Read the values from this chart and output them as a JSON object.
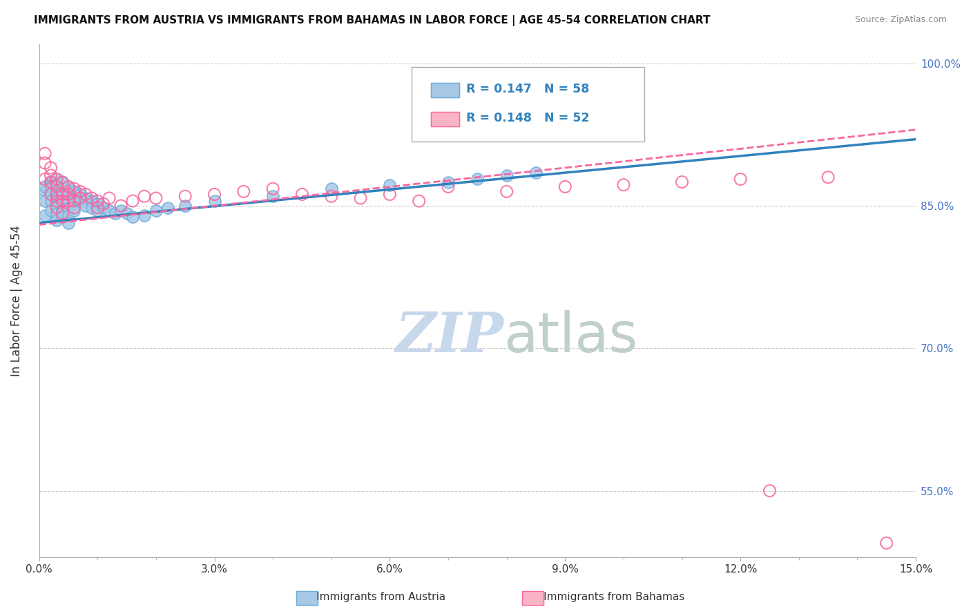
{
  "title": "IMMIGRANTS FROM AUSTRIA VS IMMIGRANTS FROM BAHAMAS IN LABOR FORCE | AGE 45-54 CORRELATION CHART",
  "source": "Source: ZipAtlas.com",
  "ylabel": "In Labor Force | Age 45-54",
  "xlim": [
    0.0,
    0.15
  ],
  "ylim": [
    0.48,
    1.02
  ],
  "xticks": [
    0.0,
    0.03,
    0.06,
    0.09,
    0.12,
    0.15
  ],
  "xticklabels": [
    "0.0%",
    "3.0%",
    "6.0%",
    "9.0%",
    "12.0%",
    "15.0%"
  ],
  "yticks": [
    0.55,
    0.7,
    0.85,
    1.0
  ],
  "yticklabels": [
    "55.0%",
    "70.0%",
    "85.0%",
    "100.0%"
  ],
  "austria_color": "#a8c8e8",
  "austria_edge_color": "#6baed6",
  "bahamas_color": "#fbb4c6",
  "bahamas_edge_color": "#f768a1",
  "trend_austria_color": "#3182bd",
  "trend_bahamas_color": "#f768a1",
  "austria_R": 0.147,
  "austria_N": 58,
  "bahamas_R": 0.148,
  "bahamas_N": 52,
  "austria_x": [
    0.001,
    0.001,
    0.001,
    0.001,
    0.002,
    0.002,
    0.002,
    0.002,
    0.002,
    0.003,
    0.003,
    0.003,
    0.003,
    0.003,
    0.003,
    0.003,
    0.004,
    0.004,
    0.004,
    0.004,
    0.004,
    0.004,
    0.005,
    0.005,
    0.005,
    0.005,
    0.005,
    0.005,
    0.006,
    0.006,
    0.006,
    0.006,
    0.007,
    0.007,
    0.008,
    0.008,
    0.009,
    0.009,
    0.01,
    0.01,
    0.011,
    0.012,
    0.013,
    0.014,
    0.015,
    0.016,
    0.018,
    0.02,
    0.022,
    0.025,
    0.03,
    0.04,
    0.05,
    0.06,
    0.07,
    0.075,
    0.08,
    0.085
  ],
  "austria_y": [
    0.865,
    0.87,
    0.855,
    0.84,
    0.875,
    0.87,
    0.862,
    0.855,
    0.845,
    0.878,
    0.872,
    0.865,
    0.858,
    0.85,
    0.842,
    0.835,
    0.875,
    0.868,
    0.862,
    0.855,
    0.845,
    0.838,
    0.87,
    0.862,
    0.855,
    0.848,
    0.84,
    0.832,
    0.865,
    0.858,
    0.852,
    0.845,
    0.862,
    0.855,
    0.858,
    0.85,
    0.855,
    0.848,
    0.852,
    0.845,
    0.848,
    0.845,
    0.842,
    0.845,
    0.842,
    0.838,
    0.84,
    0.845,
    0.848,
    0.85,
    0.855,
    0.86,
    0.868,
    0.872,
    0.875,
    0.878,
    0.882,
    0.885
  ],
  "bahamas_x": [
    0.001,
    0.001,
    0.001,
    0.002,
    0.002,
    0.002,
    0.002,
    0.003,
    0.003,
    0.003,
    0.003,
    0.003,
    0.004,
    0.004,
    0.004,
    0.004,
    0.005,
    0.005,
    0.005,
    0.006,
    0.006,
    0.006,
    0.007,
    0.007,
    0.008,
    0.009,
    0.01,
    0.01,
    0.011,
    0.012,
    0.014,
    0.016,
    0.018,
    0.02,
    0.025,
    0.03,
    0.035,
    0.04,
    0.045,
    0.05,
    0.055,
    0.06,
    0.065,
    0.07,
    0.08,
    0.09,
    0.1,
    0.11,
    0.12,
    0.125,
    0.135,
    0.145
  ],
  "bahamas_y": [
    0.878,
    0.905,
    0.895,
    0.882,
    0.875,
    0.89,
    0.862,
    0.878,
    0.87,
    0.862,
    0.855,
    0.848,
    0.875,
    0.862,
    0.855,
    0.842,
    0.87,
    0.862,
    0.855,
    0.868,
    0.855,
    0.848,
    0.865,
    0.858,
    0.862,
    0.858,
    0.855,
    0.848,
    0.852,
    0.858,
    0.85,
    0.855,
    0.86,
    0.858,
    0.86,
    0.862,
    0.865,
    0.868,
    0.862,
    0.86,
    0.858,
    0.862,
    0.855,
    0.87,
    0.865,
    0.87,
    0.872,
    0.875,
    0.878,
    0.55,
    0.88,
    0.495
  ],
  "watermark_zip": "ZIP",
  "watermark_atlas": "atlas",
  "background_color": "#ffffff",
  "grid_color": "#cccccc",
  "legend_border_color": "#aaaaaa",
  "legend_text_color": "#3182bd"
}
